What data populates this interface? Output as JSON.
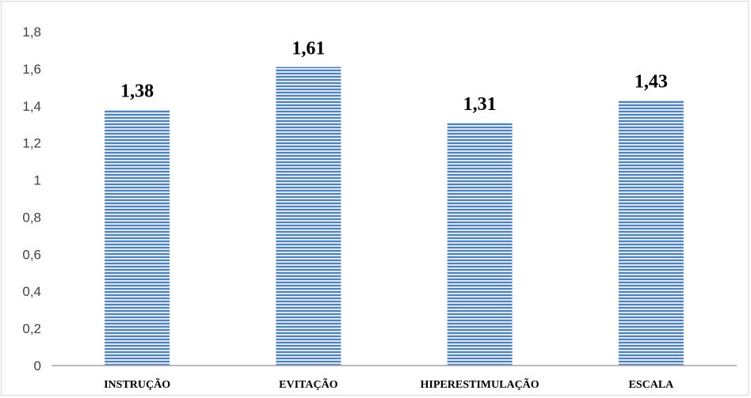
{
  "chart_data": {
    "type": "bar",
    "categories": [
      "INSTRUÇÃO",
      "EVITAÇÃO",
      "HIPERESTIMULAÇÃO",
      "ESCALA"
    ],
    "values": [
      1.38,
      1.61,
      1.31,
      1.43
    ],
    "data_labels": [
      "1,38",
      "1,61",
      "1,31",
      "1,43"
    ],
    "title": "",
    "xlabel": "",
    "ylabel": "",
    "ylim": [
      0,
      1.8
    ],
    "yticks": [
      0,
      0.2,
      0.4,
      0.6,
      0.8,
      1,
      1.2,
      1.4,
      1.6,
      1.8
    ],
    "ytick_labels": [
      "0",
      "0,2",
      "0,4",
      "0,6",
      "0,8",
      "1",
      "1,2",
      "1,4",
      "1,6",
      "1,8"
    ],
    "grid": false,
    "legend": false,
    "bar_color": "#4f81bd",
    "bar_stripe_color": "#dce6f2"
  }
}
